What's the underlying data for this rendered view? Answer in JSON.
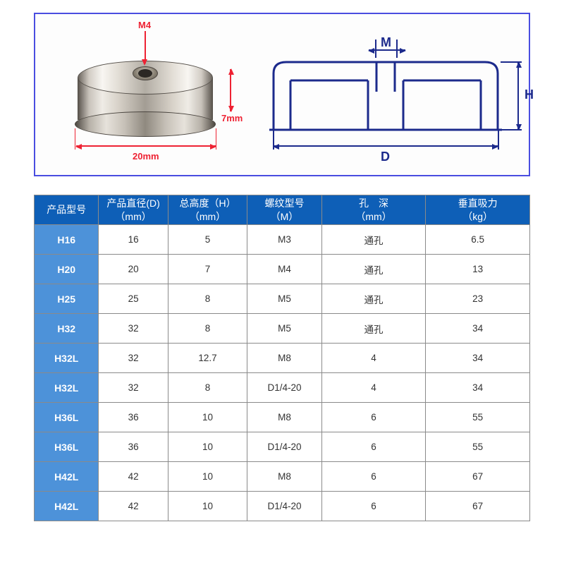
{
  "diagram": {
    "thread_label": "M4",
    "height_label": "7mm",
    "diameter_label": "20mm",
    "schematic_M": "M",
    "schematic_H": "H",
    "schematic_D": "D"
  },
  "table": {
    "columns": [
      {
        "line1": "产品型号",
        "line2": ""
      },
      {
        "line1": "产品直径(D)",
        "line2": "（mm）"
      },
      {
        "line1": "总高度（H）",
        "line2": "（mm）"
      },
      {
        "line1": "螺纹型号",
        "line2": "（M）"
      },
      {
        "line1": "孔　深",
        "line2": "（mm）"
      },
      {
        "line1": "垂直吸力",
        "line2": "（kg）"
      }
    ],
    "rows": [
      [
        "H16",
        "16",
        "5",
        "M3",
        "通孔",
        "6.5"
      ],
      [
        "H20",
        "20",
        "7",
        "M4",
        "通孔",
        "13"
      ],
      [
        "H25",
        "25",
        "8",
        "M5",
        "通孔",
        "23"
      ],
      [
        "H32",
        "32",
        "8",
        "M5",
        "通孔",
        "34"
      ],
      [
        "H32L",
        "32",
        "12.7",
        "M8",
        "4",
        "34"
      ],
      [
        "H32L",
        "32",
        "8",
        "D1/4-20",
        "4",
        "34"
      ],
      [
        "H36L",
        "36",
        "10",
        "M8",
        "6",
        "55"
      ],
      [
        "H36L",
        "36",
        "10",
        "D1/4-20",
        "6",
        "55"
      ],
      [
        "H42L",
        "42",
        "10",
        "M8",
        "6",
        "67"
      ],
      [
        "H42L",
        "42",
        "10",
        "D1/4-20",
        "6",
        "67"
      ]
    ]
  },
  "colors": {
    "frame_border": "#4a4de0",
    "dim_red": "#e23",
    "dim_blue": "#1c2a8c",
    "th_bg": "#0e5fb7",
    "row_head_bg": "#4d92d9",
    "cell_border": "#8a8a8a"
  }
}
